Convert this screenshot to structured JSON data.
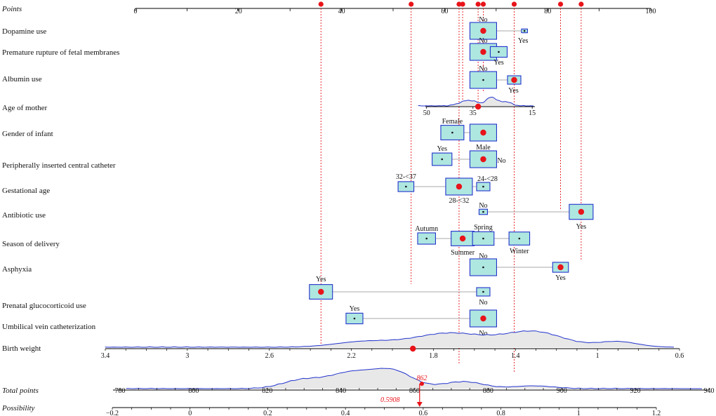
{
  "chart_data": {
    "type": "nomogram",
    "colors": {
      "box_fill": "#aee6e0",
      "box_stroke": "#2233cc",
      "marker": "#e8141a",
      "density_line": "#2233cc",
      "density_fill": "#e8e8e8",
      "guide": "#e8141a",
      "connector": "#aaaaaa"
    },
    "points_axis": {
      "label": "Points",
      "range": [
        0,
        100
      ],
      "ticks": [
        0,
        20,
        40,
        60,
        80,
        100
      ],
      "tick_labels": [
        "0",
        "20",
        "40",
        "60",
        "80",
        "100"
      ]
    },
    "rows": [
      {
        "label": "Dopamine use",
        "levels": [
          {
            "name": "No",
            "points": 67.5,
            "box": 1.0
          },
          {
            "name": "Yes",
            "points": 75.5,
            "box": 0.05
          }
        ],
        "selected": "No"
      },
      {
        "label": "Premature rupture of fetal membranes",
        "levels": [
          {
            "name": "No",
            "points": 67.5,
            "box": 1.0
          },
          {
            "name": "Yes",
            "points": 70.5,
            "box": 0.4
          }
        ],
        "selected": "No"
      },
      {
        "label": "Albumin use",
        "levels": [
          {
            "name": "No",
            "points": 67.5,
            "box": 1.0
          },
          {
            "name": "Yes",
            "points": 73.5,
            "box": 0.25
          }
        ],
        "selected": "Yes"
      },
      {
        "label": "Age of mother",
        "continuous": true,
        "tick_labels": [
          "50",
          "35",
          "15"
        ],
        "tick_points": [
          56.5,
          65.5,
          77
        ],
        "selected_points": 66.5
      },
      {
        "label": "Gender of infant",
        "levels": [
          {
            "name": "Female",
            "points": 61.5,
            "box": 0.75
          },
          {
            "name": "Male",
            "points": 67.5,
            "box": 1.0
          }
        ],
        "selected": "Male"
      },
      {
        "label": "Peripherally inserted central catheter",
        "levels": [
          {
            "name": "Yes",
            "points": 59.5,
            "box": 0.55
          },
          {
            "name": "No",
            "points": 67.5,
            "box": 1.0
          }
        ],
        "selected": "No"
      },
      {
        "label": "Gestational age",
        "levels": [
          {
            "name": "32-<37",
            "points": 52.5,
            "box": 0.35
          },
          {
            "name": "28-<32",
            "points": 62.8,
            "box": 1.0
          },
          {
            "name": "24-<28",
            "points": 67.5,
            "box": 0.25
          }
        ],
        "selected": "28-<32"
      },
      {
        "label": "Antibiotic use",
        "levels": [
          {
            "name": "No",
            "points": 67.5,
            "box": 0.1
          },
          {
            "name": "Yes",
            "points": 86.5,
            "box": 0.8
          }
        ],
        "selected": "Yes"
      },
      {
        "label": "Season of delivery",
        "levels": [
          {
            "name": "Autumn",
            "points": 56.5,
            "box": 0.45
          },
          {
            "name": "Summer",
            "points": 63.5,
            "box": 0.75
          },
          {
            "name": "Spring",
            "points": 67.5,
            "box": 0.65
          },
          {
            "name": "Winter",
            "points": 74.5,
            "box": 0.6
          }
        ],
        "selected": "Summer"
      },
      {
        "label": "Asphyxia",
        "levels": [
          {
            "name": "No",
            "points": 67.5,
            "box": 1.0
          },
          {
            "name": "Yes",
            "points": 82.5,
            "box": 0.35
          }
        ],
        "selected": "Yes"
      },
      {
        "label": "Prenatal glucocorticoid use",
        "levels": [
          {
            "name": "Yes",
            "points": 36,
            "box": 0.75
          },
          {
            "name": "No",
            "points": 67.5,
            "box": 0.25
          }
        ],
        "selected": "Yes"
      },
      {
        "label": "Umbilical vein catheterization",
        "levels": [
          {
            "name": "Yes",
            "points": 42.5,
            "box": 0.4
          },
          {
            "name": "No",
            "points": 67.5,
            "box": 1.0
          }
        ],
        "selected": "No"
      },
      {
        "label": "Birth weight",
        "continuous": true,
        "tick_labels": [
          "3.4",
          "3",
          "2.6",
          "2.2",
          "1.8",
          "1.4",
          "1",
          "0.6"
        ],
        "tick_values": [
          3.4,
          3.0,
          2.6,
          2.2,
          1.8,
          1.4,
          1.0,
          0.6
        ],
        "selected_value": 1.9
      },
      {
        "label": "Total points",
        "continuous": true,
        "tick_labels": [
          "780",
          "800",
          "820",
          "840",
          "860",
          "880",
          "900",
          "920",
          "940"
        ],
        "tick_values": [
          780,
          800,
          820,
          840,
          860,
          880,
          900,
          920,
          940
        ],
        "selected_value": 862,
        "selected_label": "862"
      },
      {
        "label": "Possibility",
        "continuous": true,
        "tick_labels": [
          "−0.2",
          "0",
          "0.2",
          "0.4",
          "0.6",
          "0.8",
          "1",
          "1.2"
        ],
        "tick_values": [
          -0.2,
          0,
          0.2,
          0.4,
          0.6,
          0.8,
          1.0,
          1.2
        ],
        "selected_value": 0.5908,
        "selected_label": "0.5908"
      }
    ],
    "selected_points": [
      36,
      53.5,
      62.8,
      63.5,
      66.5,
      67.5,
      73.5,
      82.5,
      86.5
    ]
  }
}
